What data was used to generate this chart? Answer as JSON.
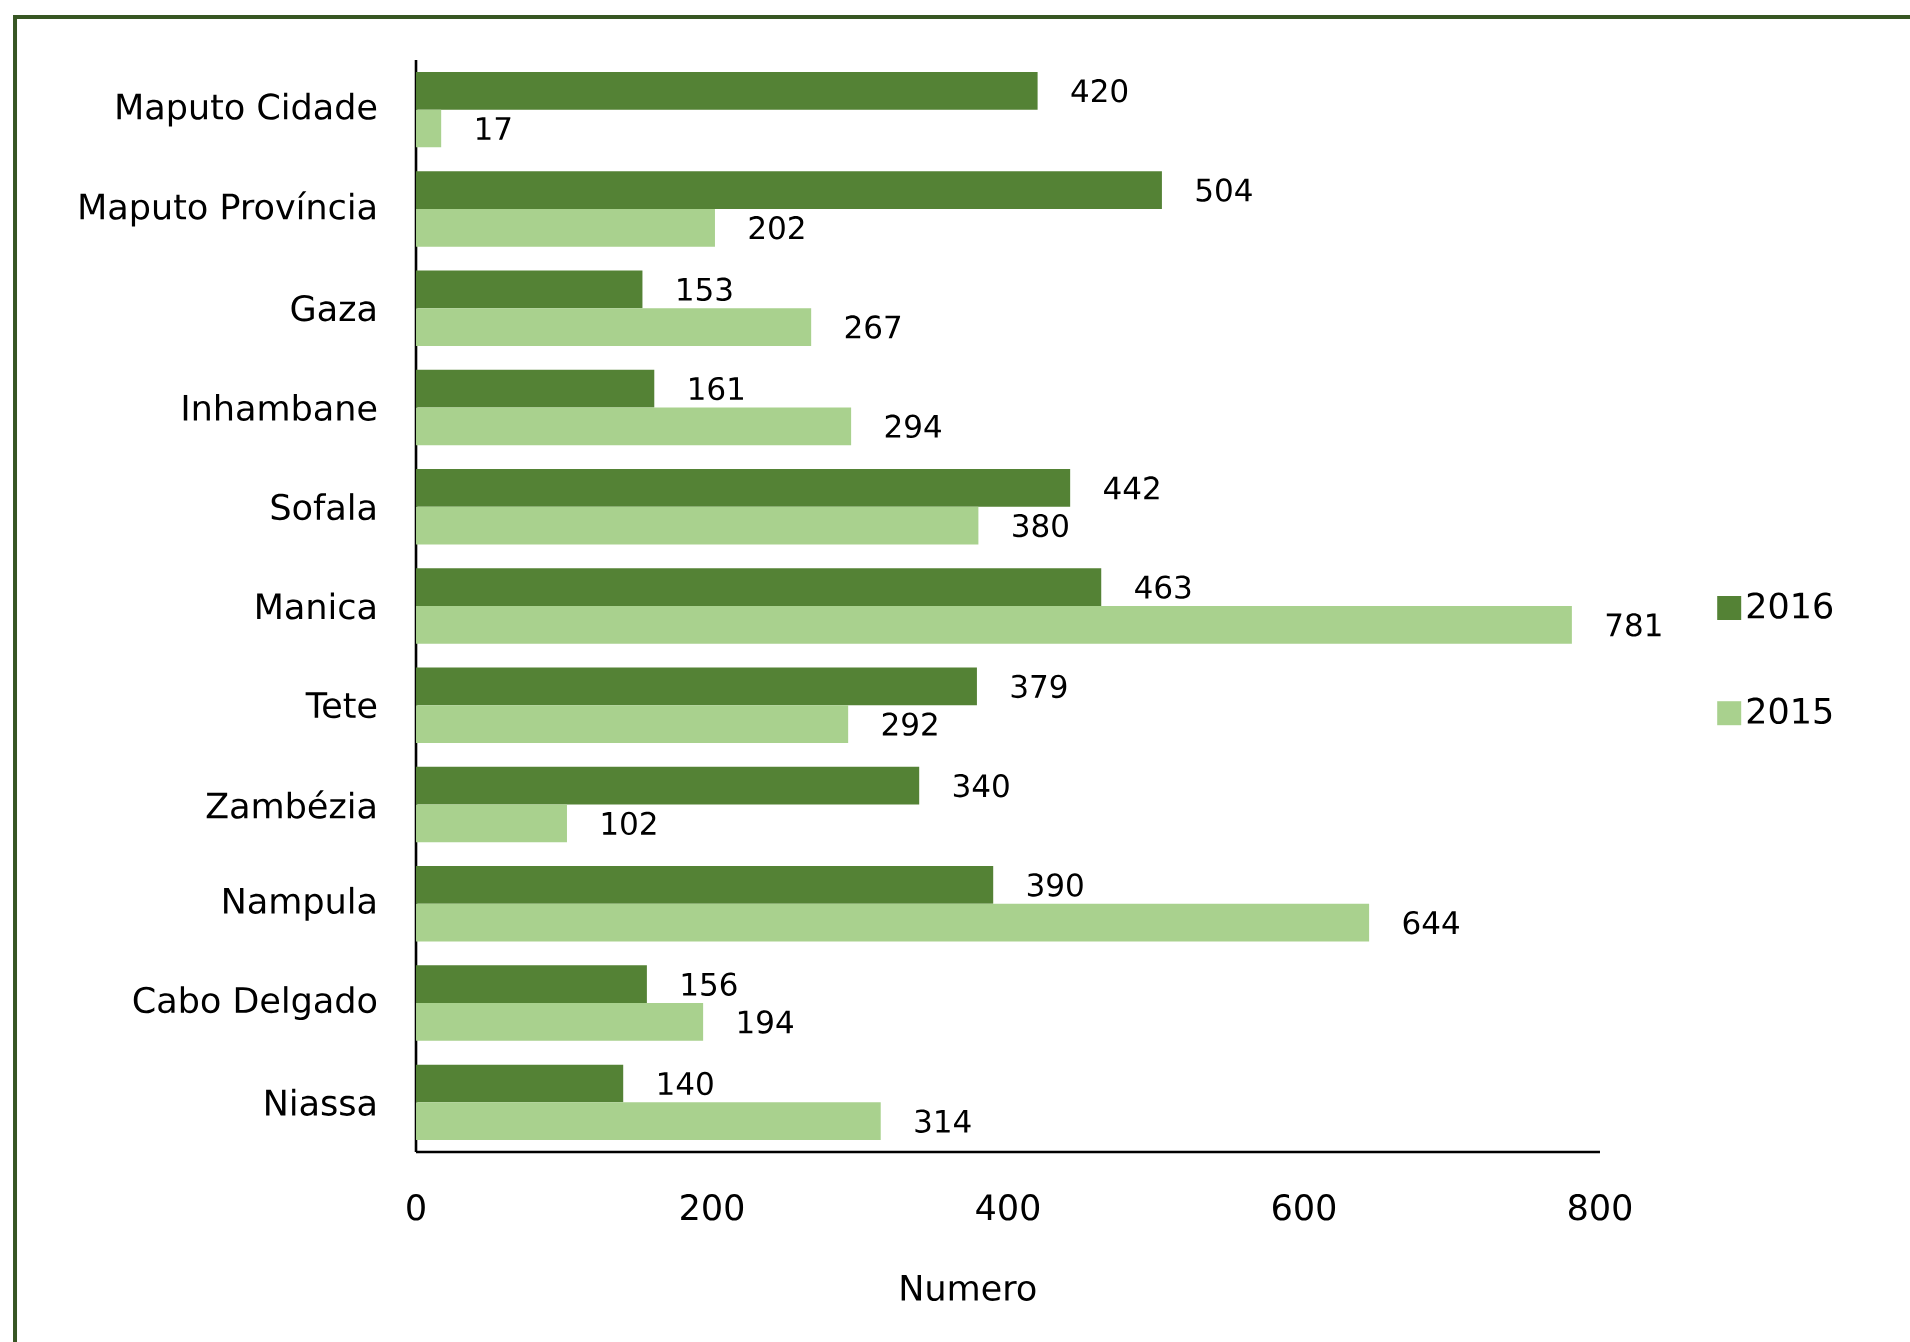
{
  "chart_data": {
    "type": "bar",
    "orientation": "horizontal",
    "categories": [
      "Maputo Cidade",
      "Maputo Província",
      "Gaza",
      "Inhambane",
      "Sofala",
      "Manica",
      "Tete",
      "Zambézia",
      "Nampula",
      "Cabo Delgado",
      "Niassa"
    ],
    "series": [
      {
        "name": "2016",
        "color": "#548235",
        "values": [
          420,
          504,
          153,
          161,
          442,
          463,
          379,
          340,
          390,
          156,
          140
        ]
      },
      {
        "name": "2015",
        "color": "#a9d18e",
        "values": [
          17,
          202,
          267,
          294,
          380,
          781,
          292,
          102,
          644,
          194,
          314
        ]
      }
    ],
    "xlabel": "Numero",
    "xlim": [
      0,
      800
    ],
    "xticks": [
      0,
      200,
      400,
      600,
      800
    ],
    "legend": "right",
    "data_labels": true
  }
}
